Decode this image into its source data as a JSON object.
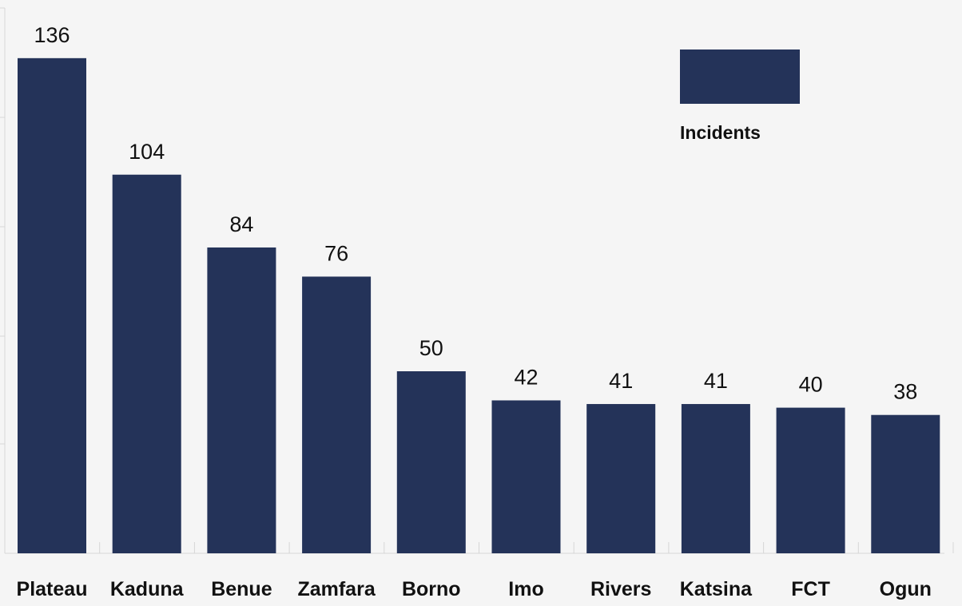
{
  "chart_data": {
    "type": "bar",
    "categories": [
      "Plateau",
      "Kaduna",
      "Benue",
      "Zamfara",
      "Borno",
      "Imo",
      "Rivers",
      "Katsina",
      "FCT",
      "Ogun"
    ],
    "series": [
      {
        "name": "Incidents",
        "values": [
          136,
          104,
          84,
          76,
          50,
          42,
          41,
          41,
          40,
          38
        ],
        "color": "#243359"
      }
    ],
    "data_labels": [
      "136",
      "104",
      "84",
      "76",
      "50",
      "42",
      "41",
      "41",
      "40",
      "38"
    ],
    "ylim": [
      0,
      150
    ],
    "legend": {
      "position": "top-right"
    },
    "grid": false
  }
}
